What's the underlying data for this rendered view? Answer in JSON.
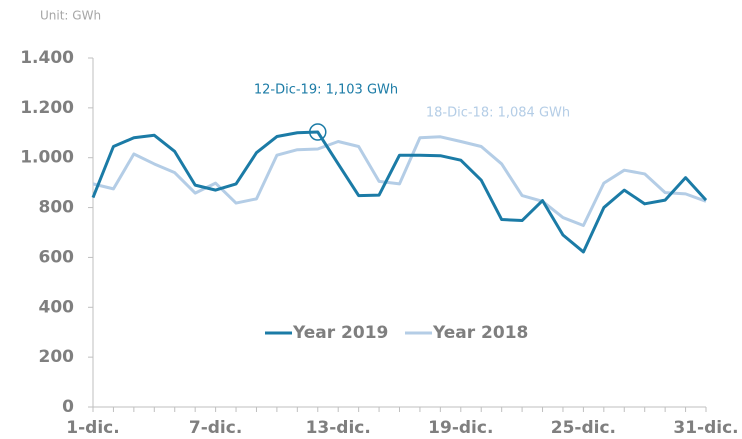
{
  "chart_data": {
    "type": "line",
    "unit": "Unit: GWh",
    "categories": [
      "1-dic.",
      null,
      null,
      null,
      null,
      null,
      "7-dic.",
      null,
      null,
      null,
      null,
      null,
      "13-dic.",
      null,
      null,
      null,
      null,
      null,
      "19-dic.",
      null,
      null,
      null,
      null,
      null,
      "25-dic.",
      null,
      null,
      null,
      null,
      null,
      "31-dic."
    ],
    "series": [
      {
        "name": "Year 2019",
        "color": "#1b7ba6",
        "values": [
          840,
          1045,
          1080,
          1090,
          1025,
          890,
          870,
          895,
          1020,
          1085,
          1100,
          1103,
          975,
          848,
          850,
          1010,
          1010,
          1008,
          990,
          910,
          752,
          748,
          828,
          690,
          622,
          800,
          870,
          815,
          830,
          920,
          830
        ]
      },
      {
        "name": "Year 2018",
        "color": "#b4cde6",
        "values": [
          895,
          875,
          1015,
          975,
          940,
          858,
          898,
          818,
          835,
          1010,
          1032,
          1035,
          1065,
          1045,
          905,
          895,
          1080,
          1084,
          1065,
          1045,
          975,
          848,
          825,
          760,
          728,
          898,
          950,
          935,
          860,
          855,
          825
        ]
      }
    ],
    "annotations": [
      "12-Dic-19: 1,103 GWh",
      "18-Dic-18: 1,084 GWh"
    ],
    "ylim": [
      0,
      1400
    ],
    "yticks": [
      0,
      200,
      400,
      600,
      800,
      {
        "value": 1000,
        "label": "1.000"
      },
      {
        "value": 1200,
        "label": "1.200"
      },
      {
        "value": 1400,
        "label": "1.400"
      }
    ],
    "grid": false,
    "legend": "center"
  }
}
